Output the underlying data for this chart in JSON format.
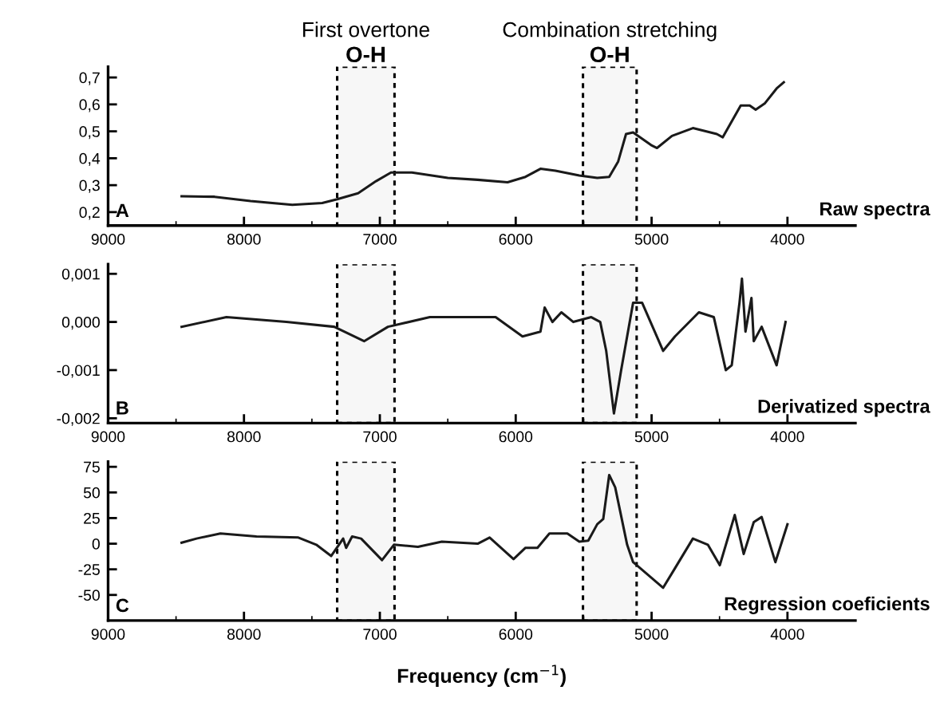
{
  "chart_data": [
    {
      "type": "line",
      "title": "Raw spectra",
      "annotations": [
        "A",
        "First overtone",
        "Combination stretching"
      ],
      "xlim": [
        9000,
        3500
      ],
      "xticks": [
        9000,
        8000,
        7000,
        6000,
        5000,
        4000
      ],
      "ylim": [
        0.15,
        0.74
      ],
      "yticks": [
        {
          "value": 0.2,
          "label": "0,2"
        },
        {
          "value": 0.3,
          "label": "0,3"
        },
        {
          "value": 0.4,
          "label": "0,4"
        },
        {
          "value": 0.5,
          "label": "0,5"
        },
        {
          "value": 0.6,
          "label": "0,6"
        },
        {
          "value": 0.7,
          "label": "0,7"
        }
      ],
      "bands": [
        {
          "axis": "x",
          "from": 7314,
          "to": 6892,
          "label": "O-H",
          "color": "#000000"
        },
        {
          "axis": "x",
          "from": 5505,
          "to": 5110,
          "label": "O-H",
          "color": "#000000"
        }
      ],
      "series": [
        {
          "color": "#1a1a1a",
          "x": [
            8459,
            8217,
            7952,
            7644,
            7424,
            7314,
            7160,
            7028,
            6918,
            6764,
            6500,
            6280,
            6060,
            5928,
            5818,
            5708,
            5532,
            5400,
            5312,
            5246,
            5188,
            5136,
            5004,
            4960,
            4850,
            4696,
            4520,
            4476,
            4344,
            4278,
            4234,
            4168,
            4080,
            4027
          ],
          "values": [
            0.259,
            0.257,
            0.241,
            0.227,
            0.234,
            0.248,
            0.27,
            0.315,
            0.347,
            0.347,
            0.327,
            0.32,
            0.311,
            0.331,
            0.361,
            0.354,
            0.336,
            0.327,
            0.331,
            0.388,
            0.49,
            0.496,
            0.449,
            0.438,
            0.483,
            0.512,
            0.49,
            0.478,
            0.596,
            0.596,
            0.58,
            0.603,
            0.659,
            0.682
          ]
        }
      ]
    },
    {
      "type": "line",
      "title": "Derivatized spectra",
      "annotations": [
        "B"
      ],
      "xlim": [
        9000,
        3500
      ],
      "xticks": [
        9000,
        8000,
        7000,
        6000,
        5000,
        4000
      ],
      "ylim": [
        -0.0021,
        0.0012
      ],
      "yticks": [
        {
          "value": 0.001,
          "label": "0,001"
        },
        {
          "value": 0,
          "label": "0,000"
        },
        {
          "value": -0.001,
          "label": "-0,001"
        },
        {
          "value": -0.002,
          "label": "-0,002"
        }
      ],
      "bands": [
        {
          "axis": "x",
          "from": 7314,
          "to": 6892,
          "color": "#000000"
        },
        {
          "axis": "x",
          "from": 5505,
          "to": 5110,
          "color": "#000000"
        }
      ],
      "series": [
        {
          "color": "#1a1a1a",
          "x": [
            8459,
            8129,
            7688,
            7336,
            7116,
            6940,
            6632,
            6148,
            5950,
            5818,
            5787,
            5730,
            5664,
            5576,
            5444,
            5378,
            5334,
            5277,
            5224,
            5136,
            5070,
            4915,
            4828,
            4652,
            4542,
            4454,
            4410,
            4353,
            4335,
            4309,
            4265,
            4248,
            4190,
            4080,
            4014
          ],
          "values": [
            -0.0001,
            0.0001,
            0,
            -0.0001,
            -0.0004,
            -0.0001,
            0.0001,
            0.0001,
            -0.0003,
            -0.0002,
            0.0003,
            0,
            0.0002,
            0,
            0.0001,
            0,
            -0.0006,
            -0.0019,
            -0.001,
            0.0004,
            0.0004,
            -0.0006,
            -0.0003,
            0.0002,
            0.0001,
            -0.001,
            -0.0009,
            0.0004,
            0.0009,
            -0.0002,
            0.0005,
            -0.0004,
            -0.0001,
            -0.0009,
            0
          ]
        }
      ]
    },
    {
      "type": "line",
      "title": "Regression coeficients",
      "annotations": [
        "C"
      ],
      "xlabel": "Frequency (cm$^{−1}$)",
      "xlim": [
        9000,
        3500
      ],
      "xticks": [
        9000,
        8000,
        7000,
        6000,
        5000,
        4000
      ],
      "ylim": [
        -75,
        80
      ],
      "yticks": [
        75,
        50,
        25,
        0,
        {
          "value": -25,
          "label": "-25"
        },
        {
          "value": -50,
          "label": "-50"
        }
      ],
      "bands": [
        {
          "axis": "x",
          "from": 7314,
          "to": 6892,
          "color": "#000000"
        },
        {
          "axis": "x",
          "from": 5505,
          "to": 5110,
          "color": "#000000"
        }
      ],
      "series": [
        {
          "color": "#1a1a1a",
          "x": [
            8459,
            8349,
            8173,
            7908,
            7600,
            7468,
            7358,
            7301,
            7270,
            7248,
            7204,
            7138,
            7028,
            6984,
            6896,
            6720,
            6544,
            6280,
            6192,
            6016,
            5928,
            5840,
            5752,
            5620,
            5532,
            5466,
            5400,
            5356,
            5312,
            5268,
            5180,
            5136,
            4915,
            4828,
            4696,
            4586,
            4498,
            4388,
            4322,
            4248,
            4190,
            4089,
            4000
          ],
          "values": [
            1,
            5,
            10,
            7,
            6,
            -1,
            -12,
            -1,
            5,
            -4,
            7,
            5,
            -10,
            -16,
            -1,
            -3,
            2,
            0,
            6,
            -15,
            -4,
            -4,
            10,
            10,
            2,
            3,
            19,
            24,
            67,
            55,
            -1,
            -18,
            -43,
            -24,
            5,
            -1,
            -21,
            28,
            -10,
            21,
            26,
            -18,
            19
          ]
        }
      ]
    }
  ]
}
